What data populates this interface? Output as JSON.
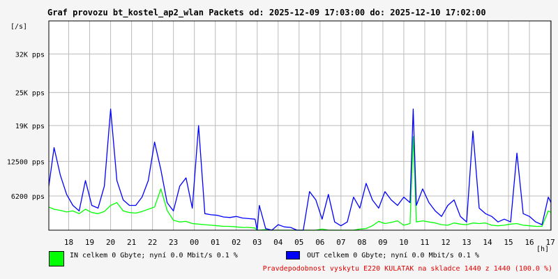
{
  "chart_data": {
    "type": "area",
    "title": "Graf provozu bt_kostel_ap2_wlan Packets od: 2025-12-09 17:03:00 do: 2025-12-10 17:02:00",
    "ylabel": "[/s]",
    "xlabel": "[h]",
    "ylim": [
      0,
      38000
    ],
    "y_ticks": [
      {
        "value": 6200,
        "label": "6200 pps"
      },
      {
        "value": 12500,
        "label": "12500 pps"
      },
      {
        "value": 19000,
        "label": "19K pps"
      },
      {
        "value": 25000,
        "label": "25K pps"
      },
      {
        "value": 32000,
        "label": "32K pps"
      }
    ],
    "xlim": [
      17.05,
      41.03
    ],
    "x_ticks": [
      {
        "value": 18,
        "label": "18"
      },
      {
        "value": 19,
        "label": "19"
      },
      {
        "value": 20,
        "label": "20"
      },
      {
        "value": 21,
        "label": "21"
      },
      {
        "value": 22,
        "label": "22"
      },
      {
        "value": 23,
        "label": "23"
      },
      {
        "value": 24,
        "label": "00"
      },
      {
        "value": 25,
        "label": "01"
      },
      {
        "value": 26,
        "label": "02"
      },
      {
        "value": 27,
        "label": "03"
      },
      {
        "value": 28,
        "label": "04"
      },
      {
        "value": 29,
        "label": "05"
      },
      {
        "value": 30,
        "label": "06"
      },
      {
        "value": 31,
        "label": "07"
      },
      {
        "value": 32,
        "label": "08"
      },
      {
        "value": 33,
        "label": "09"
      },
      {
        "value": 34,
        "label": "10"
      },
      {
        "value": 35,
        "label": "11"
      },
      {
        "value": 36,
        "label": "12"
      },
      {
        "value": 37,
        "label": "13"
      },
      {
        "value": 38,
        "label": "14"
      },
      {
        "value": 39,
        "label": "15"
      },
      {
        "value": 40,
        "label": "16"
      },
      {
        "value": 41,
        "label": "17"
      }
    ],
    "grid": true,
    "series": [
      {
        "name": "IN",
        "color": "#00ff00",
        "x": [
          17.05,
          17.3,
          17.6,
          17.9,
          18.2,
          18.5,
          18.8,
          19.1,
          19.4,
          19.7,
          20.0,
          20.3,
          20.6,
          20.9,
          21.2,
          21.5,
          21.8,
          22.1,
          22.4,
          22.7,
          23.0,
          23.3,
          23.6,
          23.9,
          24.2,
          24.5,
          24.8,
          25.1,
          25.4,
          25.7,
          26.0,
          26.3,
          26.6,
          26.9,
          27.0,
          27.1,
          27.4,
          27.7,
          28.0,
          28.3,
          28.6,
          28.9,
          29.2,
          29.5,
          29.8,
          30.1,
          30.4,
          30.7,
          31.0,
          31.3,
          31.6,
          31.9,
          32.2,
          32.5,
          32.8,
          33.1,
          33.4,
          33.7,
          34.0,
          34.3,
          34.45,
          34.6,
          34.9,
          35.2,
          35.5,
          35.8,
          36.1,
          36.4,
          36.7,
          37.0,
          37.3,
          37.6,
          37.9,
          38.2,
          38.5,
          38.8,
          39.1,
          39.4,
          39.7,
          40.0,
          40.3,
          40.6,
          40.9,
          41.03
        ],
        "values": [
          4200,
          3800,
          3600,
          3300,
          3500,
          3000,
          3800,
          3200,
          3000,
          3400,
          4500,
          5000,
          3500,
          3200,
          3100,
          3400,
          3800,
          4200,
          7500,
          3600,
          1800,
          1500,
          1600,
          1200,
          1100,
          1000,
          900,
          800,
          700,
          700,
          600,
          500,
          500,
          400,
          0,
          0,
          100,
          0,
          0,
          0,
          0,
          0,
          0,
          0,
          0,
          200,
          0,
          0,
          0,
          0,
          0,
          200,
          300,
          800,
          1600,
          1200,
          1400,
          1700,
          900,
          1200,
          17000,
          1500,
          1700,
          1500,
          1300,
          1000,
          900,
          1300,
          1100,
          1000,
          1300,
          1200,
          1300,
          900,
          800,
          900,
          1100,
          1200,
          900,
          800,
          700,
          700,
          3500,
          3200
        ]
      },
      {
        "name": "OUT",
        "color": "#0000ff",
        "x": [
          17.05,
          17.3,
          17.6,
          17.9,
          18.2,
          18.5,
          18.8,
          19.1,
          19.4,
          19.7,
          20.0,
          20.3,
          20.6,
          20.9,
          21.2,
          21.5,
          21.8,
          22.1,
          22.4,
          22.7,
          23.0,
          23.3,
          23.6,
          23.9,
          24.2,
          24.5,
          24.8,
          25.1,
          25.4,
          25.7,
          26.0,
          26.3,
          26.6,
          26.9,
          27.0,
          27.1,
          27.4,
          27.7,
          28.0,
          28.3,
          28.6,
          28.9,
          29.2,
          29.5,
          29.8,
          30.1,
          30.4,
          30.7,
          31.0,
          31.3,
          31.6,
          31.9,
          32.2,
          32.5,
          32.8,
          33.1,
          33.4,
          33.7,
          34.0,
          34.3,
          34.45,
          34.6,
          34.9,
          35.2,
          35.5,
          35.8,
          36.1,
          36.4,
          36.7,
          37.0,
          37.3,
          37.6,
          37.9,
          38.2,
          38.5,
          38.8,
          39.1,
          39.4,
          39.7,
          40.0,
          40.3,
          40.6,
          40.9,
          41.03
        ],
        "values": [
          8000,
          15000,
          10000,
          6500,
          4500,
          3500,
          9000,
          4500,
          4000,
          8000,
          22000,
          9000,
          5500,
          4500,
          4500,
          6000,
          9000,
          16000,
          11000,
          5000,
          3500,
          8000,
          9500,
          4000,
          19000,
          3000,
          2800,
          2700,
          2400,
          2300,
          2500,
          2200,
          2100,
          2000,
          0,
          4500,
          300,
          0,
          1000,
          600,
          500,
          0,
          0,
          7000,
          5500,
          2000,
          6500,
          1500,
          800,
          1500,
          6000,
          4000,
          8500,
          5500,
          4000,
          7000,
          5500,
          4500,
          6000,
          5000,
          22000,
          4500,
          7500,
          5000,
          3500,
          2500,
          4500,
          5500,
          2500,
          1500,
          18000,
          4000,
          3000,
          2500,
          1500,
          2000,
          1500,
          14000,
          3000,
          2500,
          1500,
          1000,
          6000,
          5000
        ]
      }
    ],
    "legend": [
      {
        "label": "IN celkem 0 Gbyte; nyní   0.0 Mbit/s 0.1 %",
        "color": "#00ff00"
      },
      {
        "label": "OUT celkem 0 Gbyte; nyní   0.0 Mbit/s 0.1 %",
        "color": "#0000ff"
      }
    ]
  },
  "footer": {
    "note": "Pravdepodobnost vyskytu E220 KULATAK na skladce 1440 z 1440 (100.0 %)",
    "note_color": "#e00000"
  }
}
